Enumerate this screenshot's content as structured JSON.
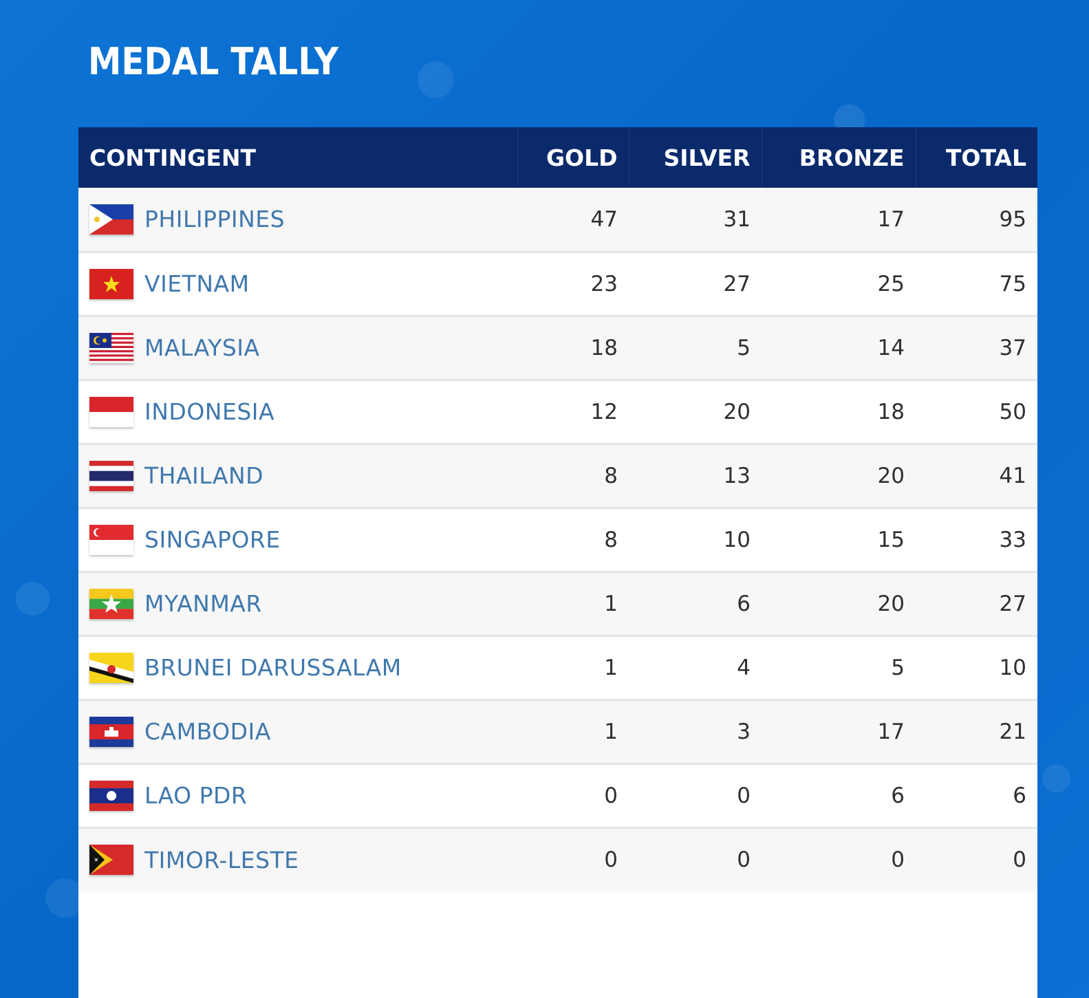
{
  "title": "MEDAL TALLY",
  "headers": {
    "contingent": "CONTINGENT",
    "gold": "GOLD",
    "silver": "SILVER",
    "bronze": "BRONZE",
    "total": "TOTAL"
  },
  "rows": [
    {
      "country": "PHILIPPINES",
      "flag": "philippines-flag-icon",
      "gold": "47",
      "silver": "31",
      "bronze": "17",
      "total": "95"
    },
    {
      "country": "VIETNAM",
      "flag": "vietnam-flag-icon",
      "gold": "23",
      "silver": "27",
      "bronze": "25",
      "total": "75"
    },
    {
      "country": "MALAYSIA",
      "flag": "malaysia-flag-icon",
      "gold": "18",
      "silver": "5",
      "bronze": "14",
      "total": "37"
    },
    {
      "country": "INDONESIA",
      "flag": "indonesia-flag-icon",
      "gold": "12",
      "silver": "20",
      "bronze": "18",
      "total": "50"
    },
    {
      "country": "THAILAND",
      "flag": "thailand-flag-icon",
      "gold": "8",
      "silver": "13",
      "bronze": "20",
      "total": "41"
    },
    {
      "country": "SINGAPORE",
      "flag": "singapore-flag-icon",
      "gold": "8",
      "silver": "10",
      "bronze": "15",
      "total": "33"
    },
    {
      "country": "MYANMAR",
      "flag": "myanmar-flag-icon",
      "gold": "1",
      "silver": "6",
      "bronze": "20",
      "total": "27"
    },
    {
      "country": "BRUNEI DARUSSALAM",
      "flag": "brunei-flag-icon",
      "gold": "1",
      "silver": "4",
      "bronze": "5",
      "total": "10"
    },
    {
      "country": "CAMBODIA",
      "flag": "cambodia-flag-icon",
      "gold": "1",
      "silver": "3",
      "bronze": "17",
      "total": "21"
    },
    {
      "country": "LAO PDR",
      "flag": "laos-flag-icon",
      "gold": "0",
      "silver": "0",
      "bronze": "6",
      "total": "6"
    },
    {
      "country": "TIMOR-LESTE",
      "flag": "timor-leste-flag-icon",
      "gold": "0",
      "silver": "0",
      "bronze": "0",
      "total": "0"
    }
  ],
  "colors": {
    "background": "#0a6fd1",
    "header_bg": "#0a2a6b",
    "country_text": "#3f78ad",
    "number_text": "#2f2f2f"
  }
}
